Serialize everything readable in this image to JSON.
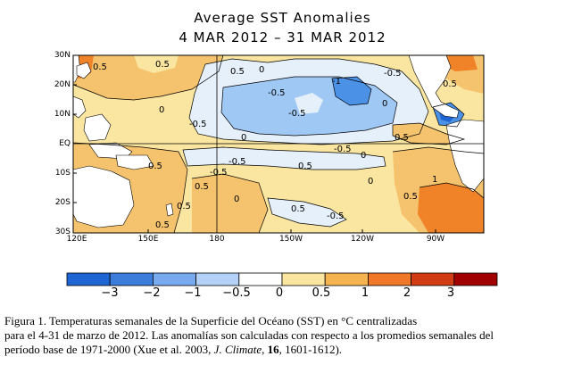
{
  "title": {
    "line1": "Average SST Anomalies",
    "line2": "4 MAR 2012 – 31 MAR 2012"
  },
  "map": {
    "latitude_labels": [
      "30N",
      "20N",
      "10N",
      "EQ",
      "10S",
      "20S",
      "30S"
    ],
    "longitude_labels": [
      "120E",
      "150E",
      "180",
      "150W",
      "120W",
      "90W"
    ],
    "contour_labels": [
      "0.5",
      "0.5",
      "0.5",
      "-0.5",
      "-0.5",
      "-1",
      "-0.5",
      "-0.5",
      "0.5",
      "0",
      "0",
      "0",
      "-0.5",
      "0.5",
      "0",
      "0.5",
      "-0.5",
      "-0.5",
      "0.5",
      "1",
      "0.5",
      "0.5",
      "0.5",
      "0.5",
      "0.5",
      "-0.5",
      "0",
      "0",
      "0"
    ],
    "colors": {
      "neg3": "#1e64d2",
      "neg2": "#4b91e6",
      "neg1": "#a0c8f5",
      "neg05": "#e6f0fa",
      "pos05": "#fae6a0",
      "pos1": "#f5c36e",
      "pos2": "#f08228",
      "pos3": "#d23c14",
      "land": "#ffffff"
    }
  },
  "colorbar": {
    "ticks": [
      "−3",
      "−2",
      "−1",
      "−0.5",
      "0",
      "0.5",
      "1",
      "2",
      "3"
    ],
    "colors": [
      "#1e64d2",
      "#3c7ddc",
      "#78aaf0",
      "#b4d2f8",
      "#ffffff",
      "#fae6a0",
      "#f5b450",
      "#f07828",
      "#d23c14",
      "#a00000"
    ]
  },
  "caption": {
    "line1": "Figura 1. Temperaturas semanales de la Superficie del Océano (SST) en °C centralizadas",
    "line2": "para el 4-31 de marzo de 2012.  Las anomalías son calculadas con respecto a los promedios  semanales del",
    "line3_a": "período base de 1971-2000  (Xue et al. 2003, ",
    "line3_journal": "J. Climate",
    "line3_b": ", ",
    "line3_volume": "16",
    "line3_c": ", 1601-1612)."
  }
}
